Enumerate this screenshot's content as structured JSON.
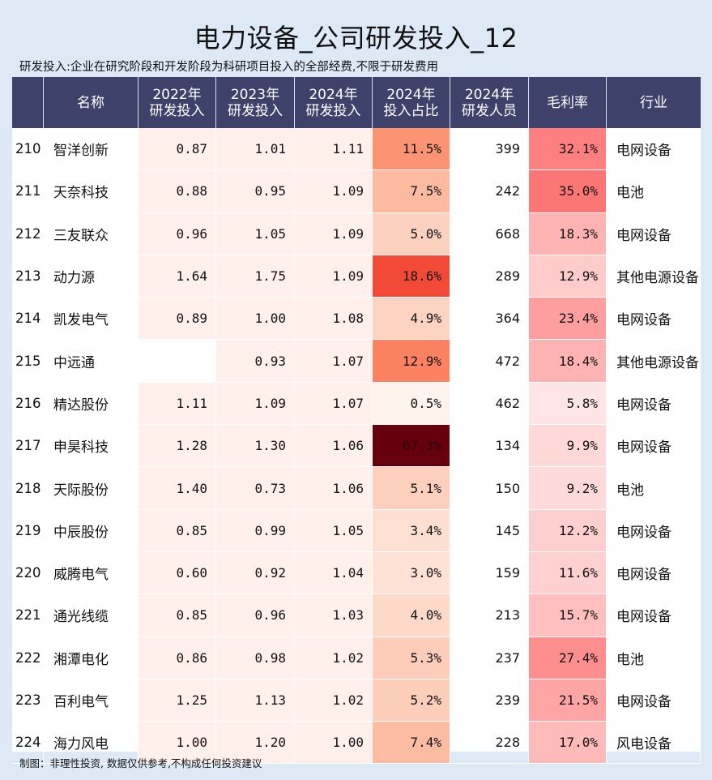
{
  "title": "电力设备_公司研发投入_12",
  "subtitle": "研发投入:企业在研究阶段和开发阶段为科研项目投入的全部经费,不限于研发费用",
  "footer": "制图：非理性投资, 数据仅供参考,不构成任何投资建议",
  "table": {
    "headers": [
      {
        "line1": "",
        "line2": ""
      },
      {
        "line1": "名称",
        "line2": ""
      },
      {
        "line1": "2022年",
        "line2": "研发投入"
      },
      {
        "line1": "2023年",
        "line2": "研发投入"
      },
      {
        "line1": "2024年",
        "line2": "研发投入"
      },
      {
        "line1": "2024年",
        "line2": "投入占比"
      },
      {
        "line1": "2024年",
        "line2": "研发人员"
      },
      {
        "line1": "毛利率",
        "line2": ""
      },
      {
        "line1": "行业",
        "line2": ""
      }
    ],
    "rows": [
      {
        "idx": "210",
        "name": "智洋创新",
        "rd2022": "0.87",
        "rd2023": "1.01",
        "rd2024": "1.11",
        "ratio": "11.5%",
        "staff": "399",
        "margin": "32.1%",
        "industry": "电网设备",
        "ratio_color": "#fc9373",
        "margin_color": "#fe7f7f"
      },
      {
        "idx": "211",
        "name": "天奈科技",
        "rd2022": "0.88",
        "rd2023": "0.95",
        "rd2024": "1.09",
        "ratio": "7.5%",
        "staff": "242",
        "margin": "35.0%",
        "industry": "电池",
        "ratio_color": "#fcbba1",
        "margin_color": "#fd7676"
      },
      {
        "idx": "212",
        "name": "三友联众",
        "rd2022": "0.96",
        "rd2023": "1.05",
        "rd2024": "1.09",
        "ratio": "5.0%",
        "staff": "668",
        "margin": "18.3%",
        "industry": "电网设备",
        "ratio_color": "#fdd1bf",
        "margin_color": "#ffb3b3"
      },
      {
        "idx": "213",
        "name": "动力源",
        "rd2022": "1.64",
        "rd2023": "1.75",
        "rd2024": "1.09",
        "ratio": "18.6%",
        "staff": "289",
        "margin": "12.9%",
        "industry": "其他电源设备",
        "ratio_color": "#f24a36",
        "margin_color": "#ffcbcb"
      },
      {
        "idx": "214",
        "name": "凯发电气",
        "rd2022": "0.89",
        "rd2023": "1.00",
        "rd2024": "1.08",
        "ratio": "4.9%",
        "staff": "364",
        "margin": "23.4%",
        "industry": "电网设备",
        "ratio_color": "#fdd3c2",
        "margin_color": "#ff9e9e"
      },
      {
        "idx": "215",
        "name": "中远通",
        "rd2022": "",
        "rd2023": "0.93",
        "rd2024": "1.07",
        "ratio": "12.9%",
        "staff": "472",
        "margin": "18.4%",
        "industry": "其他电源设备",
        "ratio_color": "#fc8261",
        "margin_color": "#ffb3b3"
      },
      {
        "idx": "216",
        "name": "精达股份",
        "rd2022": "1.11",
        "rd2023": "1.09",
        "rd2024": "1.07",
        "ratio": "0.5%",
        "staff": "462",
        "margin": "5.8%",
        "industry": "电网设备",
        "ratio_color": "#fff3ed",
        "margin_color": "#ffe5e5"
      },
      {
        "idx": "217",
        "name": "申昊科技",
        "rd2022": "1.28",
        "rd2023": "1.30",
        "rd2024": "1.06",
        "ratio": "67.3%",
        "staff": "134",
        "margin": "9.9%",
        "industry": "电网设备",
        "ratio_color": "#67000d",
        "margin_color": "#ffd8d8"
      },
      {
        "idx": "218",
        "name": "天际股份",
        "rd2022": "1.40",
        "rd2023": "0.73",
        "rd2024": "1.06",
        "ratio": "5.1%",
        "staff": "150",
        "margin": "9.2%",
        "industry": "电池",
        "ratio_color": "#fdd0bd",
        "margin_color": "#ffdada"
      },
      {
        "idx": "219",
        "name": "中辰股份",
        "rd2022": "0.85",
        "rd2023": "0.99",
        "rd2024": "1.05",
        "ratio": "3.4%",
        "staff": "145",
        "margin": "12.2%",
        "industry": "电网设备",
        "ratio_color": "#fedfd2",
        "margin_color": "#ffcece"
      },
      {
        "idx": "220",
        "name": "威腾电气",
        "rd2022": "0.60",
        "rd2023": "0.92",
        "rd2024": "1.04",
        "ratio": "3.0%",
        "staff": "159",
        "margin": "11.6%",
        "industry": "电网设备",
        "ratio_color": "#fee2d6",
        "margin_color": "#ffd0d0"
      },
      {
        "idx": "221",
        "name": "通光线缆",
        "rd2022": "0.85",
        "rd2023": "0.96",
        "rd2024": "1.03",
        "ratio": "4.0%",
        "staff": "213",
        "margin": "15.7%",
        "industry": "电网设备",
        "ratio_color": "#fdd9ca",
        "margin_color": "#ffbfbf"
      },
      {
        "idx": "222",
        "name": "湘潭电化",
        "rd2022": "0.86",
        "rd2023": "0.98",
        "rd2024": "1.02",
        "ratio": "5.3%",
        "staff": "237",
        "margin": "27.4%",
        "industry": "电池",
        "ratio_color": "#fdcdb9",
        "margin_color": "#ff8f8f"
      },
      {
        "idx": "223",
        "name": "百利电气",
        "rd2022": "1.25",
        "rd2023": "1.13",
        "rd2024": "1.02",
        "ratio": "5.2%",
        "staff": "239",
        "margin": "21.5%",
        "industry": "电网设备",
        "ratio_color": "#fdcfbb",
        "margin_color": "#ffa5a5"
      },
      {
        "idx": "224",
        "name": "海力风电",
        "rd2022": "1.00",
        "rd2023": "1.20",
        "rd2024": "1.00",
        "ratio": "7.4%",
        "staff": "228",
        "margin": "17.0%",
        "industry": "风电设备",
        "ratio_color": "#fcbca2",
        "margin_color": "#ffbaba"
      }
    ]
  },
  "colors": {
    "header_bg": "#3e426b",
    "page_bg": "#dde9f5",
    "rd_cell_bg": "#fff0eb",
    "ratio_text_dark": "#111111"
  }
}
